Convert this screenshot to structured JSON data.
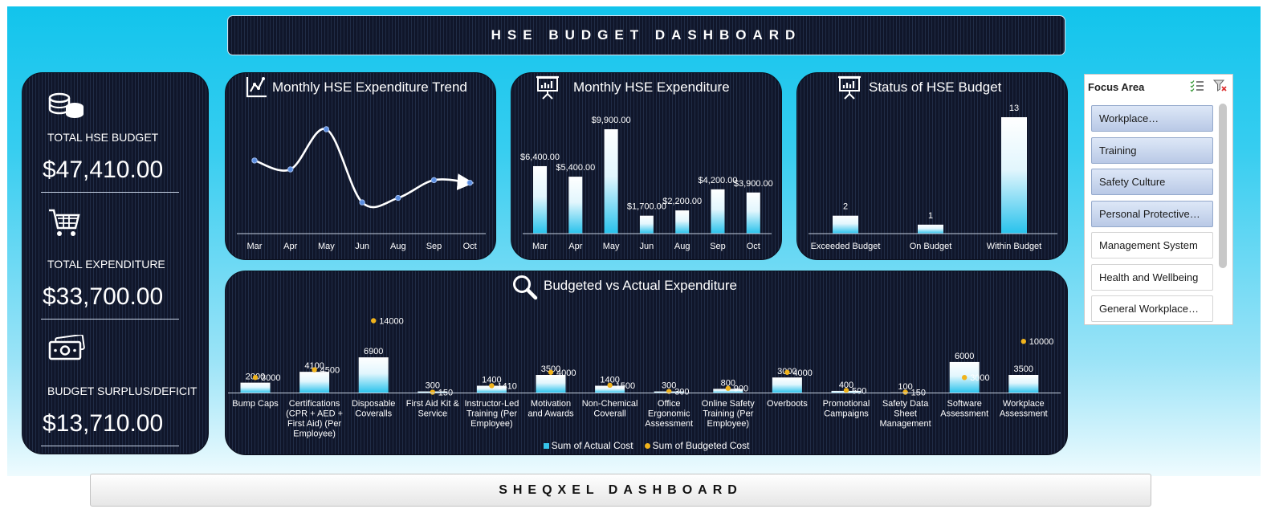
{
  "header": {
    "title": "HSE BUDGET DASHBOARD"
  },
  "kpis": {
    "budget_label": "TOTAL HSE BUDGET",
    "budget_value": "$47,410.00",
    "expenditure_label": "TOTAL EXPENDITURE",
    "expenditure_value": "$33,700.00",
    "surplus_label": "BUDGET SURPLUS/DEFICIT",
    "surplus_value": "$13,710.00"
  },
  "panels": {
    "trend_title": "Monthly HSE Expenditure Trend",
    "monthly_title": "Monthly HSE Expenditure",
    "status_title": "Status of HSE Budget",
    "bva_title": "Budgeted vs Actual Expenditure"
  },
  "legend": {
    "actual": "Sum of Actual Cost",
    "budgeted": "Sum of Budgeted Cost"
  },
  "colors": {
    "accent": "#12c4ec",
    "panel": "#10162a",
    "bar": "#36c4ea",
    "marker": "#f0b31c",
    "slicer_selected": "#b9c9e6"
  },
  "slicer": {
    "title": "Focus Area",
    "items": [
      {
        "label": "Workplace…",
        "selected": true
      },
      {
        "label": "Training",
        "selected": true
      },
      {
        "label": "Safety Culture",
        "selected": true
      },
      {
        "label": "Personal Protective…",
        "selected": true
      },
      {
        "label": "Management System",
        "selected": false
      },
      {
        "label": "Health and Wellbeing",
        "selected": false
      },
      {
        "label": "General Workplace…",
        "selected": false
      }
    ]
  },
  "footer": {
    "title": "SHEQXEL DASHBOARD"
  },
  "chart_data": [
    {
      "type": "line",
      "title": "Monthly HSE Expenditure Trend",
      "categories": [
        "Mar",
        "Apr",
        "May",
        "Jun",
        "Aug",
        "Sep",
        "Oct"
      ],
      "values": [
        6400,
        5400,
        9900,
        1700,
        2200,
        4200,
        3900
      ]
    },
    {
      "type": "bar",
      "title": "Monthly HSE Expenditure",
      "categories": [
        "Mar",
        "Apr",
        "May",
        "Jun",
        "Aug",
        "Sep",
        "Oct"
      ],
      "values": [
        6400,
        5400,
        9900,
        1700,
        2200,
        4200,
        3900
      ],
      "labels": [
        "$6,400.00",
        "$5,400.00",
        "$9,900.00",
        "$1,700.00",
        "$2,200.00",
        "$4,200.00",
        "$3,900.00"
      ]
    },
    {
      "type": "bar",
      "title": "Status of HSE Budget",
      "categories": [
        "Exceeded Budget",
        "On Budget",
        "Within Budget"
      ],
      "values": [
        2,
        1,
        13
      ]
    },
    {
      "type": "bar",
      "title": "Budgeted vs Actual Expenditure",
      "categories": [
        [
          "Bump Caps"
        ],
        [
          "Certifications",
          "(CPR + AED +",
          "First Aid) (Per",
          "Employee)"
        ],
        [
          "Disposable",
          "Coveralls"
        ],
        [
          "First Aid Kit &",
          "Service"
        ],
        [
          "Instructor-Led",
          "Training (Per",
          "Employee)"
        ],
        [
          "Motivation",
          "and Awards"
        ],
        [
          "Non-Chemical",
          "Coverall"
        ],
        [
          "Office",
          "Ergonomic",
          "Assessment"
        ],
        [
          "Online Safety",
          "Training (Per",
          "Employee)"
        ],
        [
          "Overboots"
        ],
        [
          "Promotional",
          "Campaigns"
        ],
        [
          "Safety Data",
          "Sheet",
          "Management"
        ],
        [
          "Software",
          "Assessment"
        ],
        [
          "Workplace",
          "Assessment"
        ]
      ],
      "series": [
        {
          "name": "Sum of Actual Cost",
          "values": [
            2000,
            4100,
            6900,
            300,
            1400,
            3500,
            1400,
            300,
            800,
            3000,
            400,
            100,
            6000,
            3500
          ]
        },
        {
          "name": "Sum of Budgeted Cost",
          "values": [
            3000,
            4500,
            14000,
            150,
            1410,
            4000,
            1500,
            300,
            900,
            4000,
            500,
            150,
            3000,
            10000
          ]
        }
      ]
    }
  ]
}
